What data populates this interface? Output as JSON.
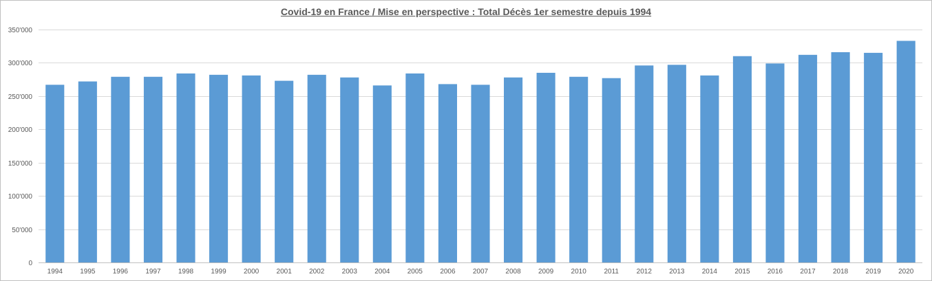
{
  "chart_data": {
    "type": "bar",
    "title": "Covid-19 en France / Mise en perspective : Total Décès 1er semestre depuis 1994",
    "xlabel": "",
    "ylabel": "",
    "ylim": [
      0,
      350000
    ],
    "y_ticks": [
      0,
      50000,
      100000,
      150000,
      200000,
      250000,
      300000,
      350000
    ],
    "y_tick_labels": [
      "0",
      "50'000",
      "100'000",
      "150'000",
      "200'000",
      "250'000",
      "300'000",
      "350'000"
    ],
    "grid": true,
    "legend": "none",
    "bar_color": "#5b9bd5",
    "categories": [
      "1994",
      "1995",
      "1996",
      "1997",
      "1998",
      "1999",
      "2000",
      "2001",
      "2002",
      "2003",
      "2004",
      "2005",
      "2006",
      "2007",
      "2008",
      "2009",
      "2010",
      "2011",
      "2012",
      "2013",
      "2014",
      "2015",
      "2016",
      "2017",
      "2018",
      "2019",
      "2020"
    ],
    "values": [
      267000,
      272000,
      279000,
      279000,
      284000,
      282000,
      281000,
      273000,
      282000,
      278000,
      266000,
      284000,
      268000,
      267000,
      278000,
      285000,
      279000,
      277000,
      296000,
      297000,
      281000,
      310000,
      299000,
      312000,
      316000,
      315000,
      333000
    ]
  }
}
